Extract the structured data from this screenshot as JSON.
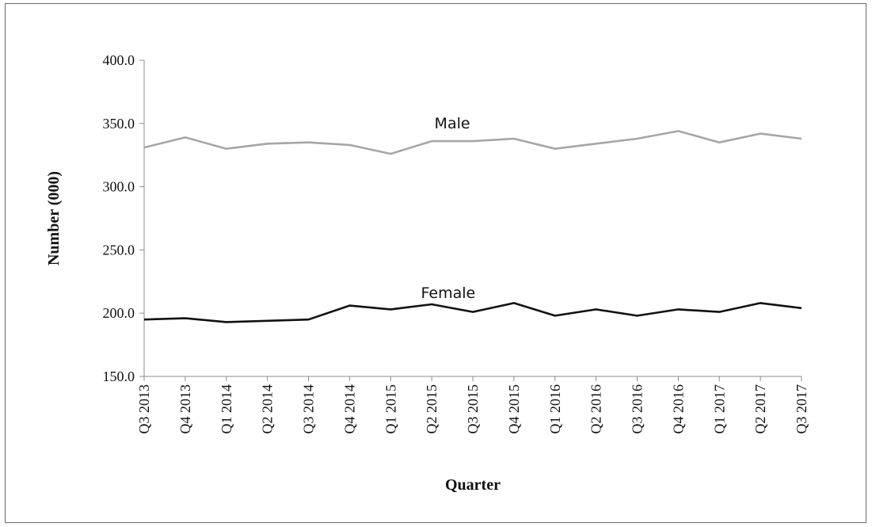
{
  "chart_data": {
    "type": "line",
    "title": "",
    "xlabel": "Quarter",
    "ylabel": "Number (000)",
    "ylim": [
      150,
      400
    ],
    "yticks": [
      "150.0",
      "200.0",
      "250.0",
      "300.0",
      "350.0",
      "400.0"
    ],
    "grid": false,
    "legend": "none",
    "categories": [
      "Q3 2013",
      "Q4 2013",
      "Q1 2014",
      "Q2 2014",
      "Q3 2014",
      "Q4 2014",
      "Q1 2015",
      "Q2 2015",
      "Q3 2015",
      "Q4 2015",
      "Q1 2016",
      "Q2 2016",
      "Q3 2016",
      "Q4 2016",
      "Q1 2017",
      "Q2 2017",
      "Q3 2017"
    ],
    "series": [
      {
        "name": "Male",
        "color": "#a6a6a6",
        "values": [
          331,
          339,
          330,
          334,
          335,
          333,
          326,
          336,
          336,
          338,
          330,
          334,
          338,
          344,
          335,
          342,
          338
        ]
      },
      {
        "name": "Female",
        "color": "#111111",
        "values": [
          195,
          196,
          193,
          194,
          195,
          206,
          203,
          207,
          201,
          208,
          198,
          203,
          198,
          203,
          201,
          208,
          204
        ]
      }
    ]
  }
}
